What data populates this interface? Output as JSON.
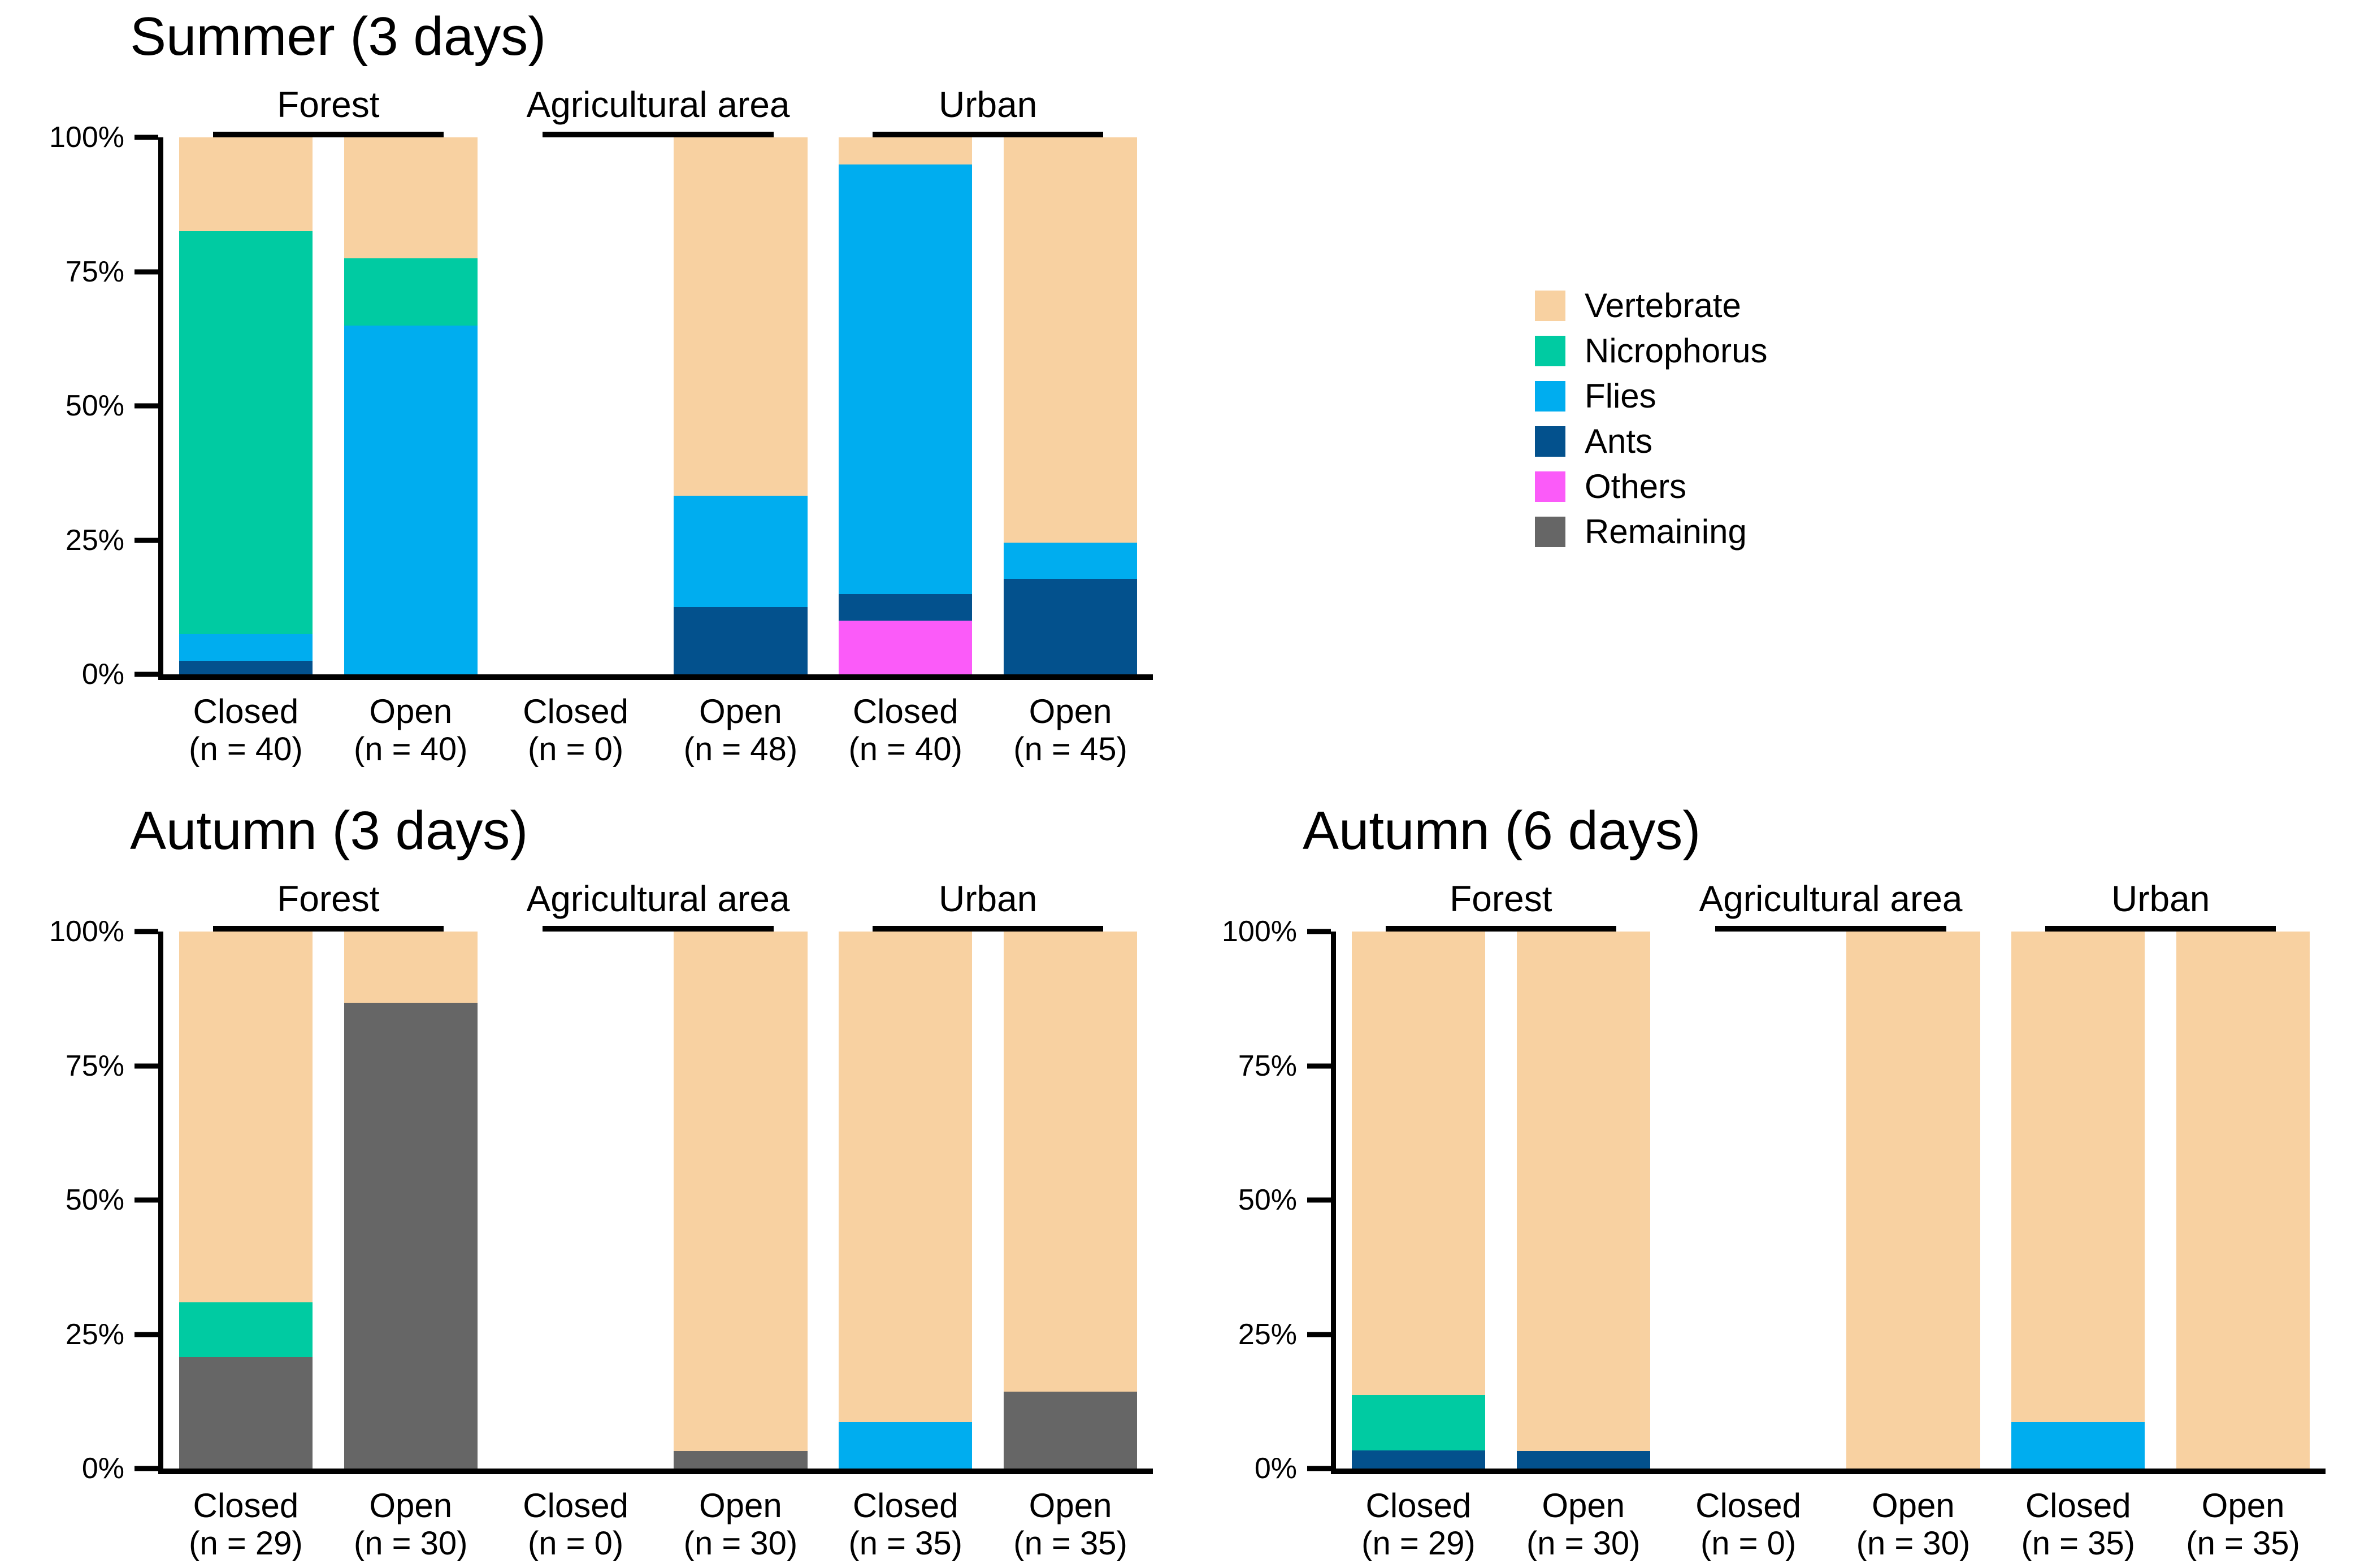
{
  "page": {
    "background": "#FFFFFF",
    "text_color": "#000000"
  },
  "legend": {
    "position": "right-of-summer-panel",
    "items": [
      {
        "label": "Vertebrate",
        "color": "#F8D1A1"
      },
      {
        "label": "Nicrophorus",
        "color": "#00CBA2"
      },
      {
        "label": "Flies",
        "color": "#00ADEF"
      },
      {
        "label": "Ants",
        "color": "#03518D"
      },
      {
        "label": "Others",
        "color": "#FB5BF9"
      },
      {
        "label": "Remaining",
        "color": "#666666"
      }
    ]
  },
  "axes": {
    "y_unit": "percent",
    "y_ticks": [
      {
        "value": 0,
        "label": "0%"
      },
      {
        "value": 25,
        "label": "25%"
      },
      {
        "value": 50,
        "label": "50%"
      },
      {
        "value": 75,
        "label": "75%"
      },
      {
        "value": 100,
        "label": "100%"
      }
    ]
  },
  "chart_data": [
    {
      "type": "bar",
      "stacked": true,
      "units": "percent",
      "title": "Summer (3 days)",
      "ylim": [
        0,
        100
      ],
      "grid": false,
      "stack_order_bottom_to_top": [
        "Remaining",
        "Others",
        "Ants",
        "Flies",
        "Nicrophorus",
        "Vertebrate"
      ],
      "groups": [
        {
          "label": "Forest",
          "bars": [
            {
              "condition": "Closed",
              "n": 40,
              "n_label": "(n = 40)",
              "segments": [
                {
                  "category": "Ants",
                  "value": 2.5
                },
                {
                  "category": "Flies",
                  "value": 5
                },
                {
                  "category": "Nicrophorus",
                  "value": 75
                },
                {
                  "category": "Vertebrate",
                  "value": 17.5
                }
              ]
            },
            {
              "condition": "Open",
              "n": 40,
              "n_label": "(n = 40)",
              "segments": [
                {
                  "category": "Flies",
                  "value": 65
                },
                {
                  "category": "Nicrophorus",
                  "value": 12.5
                },
                {
                  "category": "Vertebrate",
                  "value": 22.5
                }
              ]
            }
          ]
        },
        {
          "label": "Agricultural area",
          "bars": [
            {
              "condition": "Closed",
              "n": 0,
              "n_label": "(n = 0)",
              "segments": []
            },
            {
              "condition": "Open",
              "n": 48,
              "n_label": "(n = 48)",
              "segments": [
                {
                  "category": "Ants",
                  "value": 12.5
                },
                {
                  "category": "Flies",
                  "value": 20.8
                },
                {
                  "category": "Vertebrate",
                  "value": 66.7
                }
              ]
            }
          ]
        },
        {
          "label": "Urban",
          "bars": [
            {
              "condition": "Closed",
              "n": 40,
              "n_label": "(n = 40)",
              "segments": [
                {
                  "category": "Others",
                  "value": 10
                },
                {
                  "category": "Ants",
                  "value": 5
                },
                {
                  "category": "Flies",
                  "value": 80
                },
                {
                  "category": "Vertebrate",
                  "value": 5
                }
              ]
            },
            {
              "condition": "Open",
              "n": 45,
              "n_label": "(n = 45)",
              "segments": [
                {
                  "category": "Ants",
                  "value": 17.8
                },
                {
                  "category": "Flies",
                  "value": 6.7
                },
                {
                  "category": "Vertebrate",
                  "value": 75.5
                }
              ]
            }
          ]
        }
      ]
    },
    {
      "type": "bar",
      "stacked": true,
      "units": "percent",
      "title": "Autumn (3 days)",
      "ylim": [
        0,
        100
      ],
      "grid": false,
      "stack_order_bottom_to_top": [
        "Remaining",
        "Others",
        "Ants",
        "Flies",
        "Nicrophorus",
        "Vertebrate"
      ],
      "groups": [
        {
          "label": "Forest",
          "bars": [
            {
              "condition": "Closed",
              "n": 29,
              "n_label": "(n = 29)",
              "segments": [
                {
                  "category": "Remaining",
                  "value": 20.7
                },
                {
                  "category": "Nicrophorus",
                  "value": 10.3
                },
                {
                  "category": "Vertebrate",
                  "value": 69
                }
              ]
            },
            {
              "condition": "Open",
              "n": 30,
              "n_label": "(n = 30)",
              "segments": [
                {
                  "category": "Remaining",
                  "value": 86.7
                },
                {
                  "category": "Vertebrate",
                  "value": 13.3
                }
              ]
            }
          ]
        },
        {
          "label": "Agricultural area",
          "bars": [
            {
              "condition": "Closed",
              "n": 0,
              "n_label": "(n = 0)",
              "segments": []
            },
            {
              "condition": "Open",
              "n": 30,
              "n_label": "(n = 30)",
              "segments": [
                {
                  "category": "Remaining",
                  "value": 3.3
                },
                {
                  "category": "Vertebrate",
                  "value": 96.7
                }
              ]
            }
          ]
        },
        {
          "label": "Urban",
          "bars": [
            {
              "condition": "Closed",
              "n": 35,
              "n_label": "(n = 35)",
              "segments": [
                {
                  "category": "Flies",
                  "value": 8.6
                },
                {
                  "category": "Vertebrate",
                  "value": 91.4
                }
              ]
            },
            {
              "condition": "Open",
              "n": 35,
              "n_label": "(n = 35)",
              "segments": [
                {
                  "category": "Remaining",
                  "value": 14.3
                },
                {
                  "category": "Vertebrate",
                  "value": 85.7
                }
              ]
            }
          ]
        }
      ]
    },
    {
      "type": "bar",
      "stacked": true,
      "units": "percent",
      "title": "Autumn (6 days)",
      "ylim": [
        0,
        100
      ],
      "grid": false,
      "stack_order_bottom_to_top": [
        "Remaining",
        "Others",
        "Ants",
        "Flies",
        "Nicrophorus",
        "Vertebrate"
      ],
      "groups": [
        {
          "label": "Forest",
          "bars": [
            {
              "condition": "Closed",
              "n": 29,
              "n_label": "(n = 29)",
              "segments": [
                {
                  "category": "Ants",
                  "value": 3.4
                },
                {
                  "category": "Nicrophorus",
                  "value": 10.3
                },
                {
                  "category": "Vertebrate",
                  "value": 86.3
                }
              ]
            },
            {
              "condition": "Open",
              "n": 30,
              "n_label": "(n = 30)",
              "segments": [
                {
                  "category": "Ants",
                  "value": 3.3
                },
                {
                  "category": "Vertebrate",
                  "value": 96.7
                }
              ]
            }
          ]
        },
        {
          "label": "Agricultural area",
          "bars": [
            {
              "condition": "Closed",
              "n": 0,
              "n_label": "(n = 0)",
              "segments": []
            },
            {
              "condition": "Open",
              "n": 30,
              "n_label": "(n = 30)",
              "segments": [
                {
                  "category": "Vertebrate",
                  "value": 100
                }
              ]
            }
          ]
        },
        {
          "label": "Urban",
          "bars": [
            {
              "condition": "Closed",
              "n": 35,
              "n_label": "(n = 35)",
              "segments": [
                {
                  "category": "Flies",
                  "value": 8.6
                },
                {
                  "category": "Vertebrate",
                  "value": 91.4
                }
              ]
            },
            {
              "condition": "Open",
              "n": 35,
              "n_label": "(n = 35)",
              "segments": [
                {
                  "category": "Vertebrate",
                  "value": 100
                }
              ]
            }
          ]
        }
      ]
    }
  ]
}
